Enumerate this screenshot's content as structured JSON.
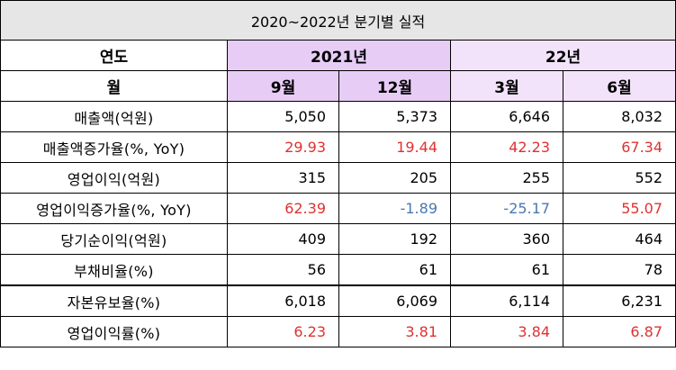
{
  "title": "2020~2022년 분기별 실적",
  "header": {
    "year_label": "연도",
    "month_label": "월",
    "year_2021": "2021년",
    "year_22": "22년",
    "months": [
      "9월",
      "12월",
      "3월",
      "6월"
    ]
  },
  "colors": {
    "header_2021": "#e7cdf6",
    "header_22": "#f3e3fa",
    "positive_growth": "#e03131",
    "negative_growth": "#4a78b0"
  },
  "rows": [
    {
      "label": "매출액(억원)",
      "values": [
        "5,050",
        "5,373",
        "6,646",
        "8,032"
      ]
    },
    {
      "label": "매출액증가율(%, YoY)",
      "values": [
        "29.93",
        "19.44",
        "42.23",
        "67.34"
      ]
    },
    {
      "label": "영업이익(억원)",
      "values": [
        "315",
        "205",
        "255",
        "552"
      ]
    },
    {
      "label": "영업이익증가율(%, YoY)",
      "values": [
        "62.39",
        "-1.89",
        "-25.17",
        "55.07"
      ]
    },
    {
      "label": "당기순이익(억원)",
      "values": [
        "409",
        "192",
        "360",
        "464"
      ]
    },
    {
      "label": "부채비율(%)",
      "values": [
        "56",
        "61",
        "61",
        "78"
      ]
    },
    {
      "label": "자본유보율(%)",
      "values": [
        "6,018",
        "6,069",
        "6,114",
        "6,231"
      ]
    },
    {
      "label": "영업이익률(%)",
      "values": [
        "6.23",
        "3.81",
        "3.84",
        "6.87"
      ]
    }
  ]
}
